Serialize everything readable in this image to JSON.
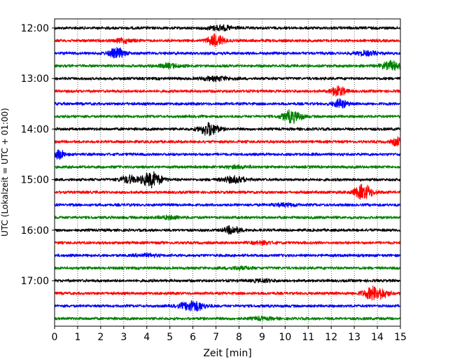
{
  "chart_data": {
    "type": "line",
    "title": "",
    "xlabel": "Zeit  [min]",
    "ylabel": "UTC (Lokalzeit = UTC + 01:00)",
    "xlim": [
      0,
      15
    ],
    "x_ticks": [
      0,
      1,
      2,
      3,
      4,
      5,
      6,
      7,
      8,
      9,
      10,
      11,
      12,
      13,
      14,
      15
    ],
    "x_tick_labels": [
      "0",
      "1",
      "2",
      "3",
      "4",
      "5",
      "6",
      "7",
      "8",
      "9",
      "10",
      "11",
      "12",
      "13",
      "14",
      "15"
    ],
    "y_tick_labels": [
      "12:00",
      "13:00",
      "14:00",
      "15:00",
      "16:00",
      "17:00"
    ],
    "y_tick_rows": [
      0,
      4,
      8,
      12,
      16,
      20
    ],
    "trace_interval_min": 15,
    "grid": "vertical-dotted",
    "colors": [
      "#000000",
      "#ff0000",
      "#0000ff",
      "#008000"
    ],
    "series": [
      {
        "start": "12:00",
        "color": "#000000",
        "bursts": [
          {
            "t": 7.2,
            "amp": 0.4,
            "w": 0.5
          }
        ]
      },
      {
        "start": "12:15",
        "color": "#ff0000",
        "bursts": [
          {
            "t": 7.0,
            "amp": 1.0,
            "w": 0.35
          },
          {
            "t": 3.0,
            "amp": 0.3,
            "w": 0.4
          }
        ]
      },
      {
        "start": "12:30",
        "color": "#0000ff",
        "bursts": [
          {
            "t": 2.7,
            "amp": 0.8,
            "w": 0.35
          },
          {
            "t": 13.5,
            "amp": 0.3,
            "w": 0.5
          }
        ]
      },
      {
        "start": "12:45",
        "color": "#008000",
        "bursts": [
          {
            "t": 14.6,
            "amp": 0.7,
            "w": 0.4
          },
          {
            "t": 5.0,
            "amp": 0.3,
            "w": 0.5
          }
        ]
      },
      {
        "start": "13:00",
        "color": "#000000",
        "bursts": [
          {
            "t": 7.0,
            "amp": 0.3,
            "w": 0.6
          }
        ]
      },
      {
        "start": "13:15",
        "color": "#ff0000",
        "bursts": [
          {
            "t": 12.3,
            "amp": 0.9,
            "w": 0.3
          }
        ]
      },
      {
        "start": "13:30",
        "color": "#0000ff",
        "bursts": [
          {
            "t": 12.4,
            "amp": 0.7,
            "w": 0.3
          }
        ]
      },
      {
        "start": "13:45",
        "color": "#008000",
        "bursts": [
          {
            "t": 10.3,
            "amp": 1.0,
            "w": 0.4
          }
        ]
      },
      {
        "start": "14:00",
        "color": "#000000",
        "bursts": [
          {
            "t": 6.7,
            "amp": 1.1,
            "w": 0.4
          }
        ]
      },
      {
        "start": "14:15",
        "color": "#ff0000",
        "bursts": [
          {
            "t": 14.9,
            "amp": 0.7,
            "w": 0.25
          }
        ]
      },
      {
        "start": "14:30",
        "color": "#0000ff",
        "bursts": [
          {
            "t": 0.2,
            "amp": 0.7,
            "w": 0.25
          }
        ]
      },
      {
        "start": "14:45",
        "color": "#008000",
        "bursts": [
          {
            "t": 8.0,
            "amp": 0.2,
            "w": 0.5
          }
        ]
      },
      {
        "start": "15:00",
        "color": "#000000",
        "bursts": [
          {
            "t": 4.2,
            "amp": 1.2,
            "w": 0.45
          },
          {
            "t": 3.2,
            "amp": 0.6,
            "w": 0.35
          },
          {
            "t": 7.8,
            "amp": 0.5,
            "w": 0.5
          }
        ]
      },
      {
        "start": "15:15",
        "color": "#ff0000",
        "bursts": [
          {
            "t": 13.4,
            "amp": 1.2,
            "w": 0.4
          }
        ]
      },
      {
        "start": "15:30",
        "color": "#0000ff",
        "bursts": [
          {
            "t": 10.0,
            "amp": 0.2,
            "w": 0.5
          }
        ]
      },
      {
        "start": "15:45",
        "color": "#008000",
        "bursts": [
          {
            "t": 5.0,
            "amp": 0.2,
            "w": 0.5
          }
        ]
      },
      {
        "start": "16:00",
        "color": "#000000",
        "bursts": [
          {
            "t": 7.7,
            "amp": 0.6,
            "w": 0.35
          }
        ]
      },
      {
        "start": "16:15",
        "color": "#ff0000",
        "bursts": [
          {
            "t": 9.0,
            "amp": 0.2,
            "w": 0.5
          }
        ]
      },
      {
        "start": "16:30",
        "color": "#0000ff",
        "bursts": [
          {
            "t": 4.0,
            "amp": 0.2,
            "w": 0.5
          }
        ]
      },
      {
        "start": "16:45",
        "color": "#008000",
        "bursts": [
          {
            "t": 8.0,
            "amp": 0.2,
            "w": 0.5
          }
        ]
      },
      {
        "start": "17:00",
        "color": "#000000",
        "bursts": [
          {
            "t": 9.0,
            "amp": 0.2,
            "w": 0.5
          }
        ]
      },
      {
        "start": "17:15",
        "color": "#ff0000",
        "bursts": [
          {
            "t": 13.9,
            "amp": 1.1,
            "w": 0.5
          }
        ]
      },
      {
        "start": "17:30",
        "color": "#0000ff",
        "bursts": [
          {
            "t": 6.0,
            "amp": 0.9,
            "w": 0.5
          }
        ]
      },
      {
        "start": "17:45",
        "color": "#008000",
        "bursts": [
          {
            "t": 9.0,
            "amp": 0.2,
            "w": 0.5
          }
        ]
      }
    ]
  }
}
